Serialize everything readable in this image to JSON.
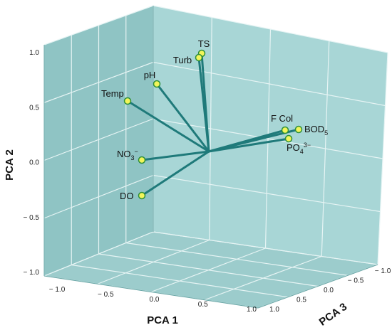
{
  "chart_data": {
    "type": "scatter",
    "subtype": "3d-pca-biplot",
    "title": "",
    "xlabel": "PCA 1",
    "ylabel": "PCA 2",
    "zlabel": "PCA 3",
    "x_ticks": [
      "− 1.0",
      "− 0.5",
      "0.0",
      "0.5",
      "1.0"
    ],
    "y_ticks": [
      "1.0",
      "0.5",
      "0.0",
      "− 0.5",
      "− 1.0"
    ],
    "z_ticks": [
      "1.0",
      "0.5",
      "0.0",
      "− 0.5",
      "− 1.0"
    ],
    "xlim": [
      -1,
      1
    ],
    "ylim": [
      -1,
      1
    ],
    "zlim": [
      -1,
      1
    ],
    "grid": true,
    "colors": {
      "pane_left": "#8fc4c4",
      "pane_back": "#a8d6d6",
      "pane_floor": "#9ccccc",
      "grid": "#e6f4f4",
      "vector": "#1f7a7a",
      "point_fill": "#f2f55a",
      "point_stroke": "#2e8f3a"
    },
    "loadings": [
      {
        "label": "TS",
        "sub": "",
        "sup": ""
      },
      {
        "label": "Turb",
        "sub": "",
        "sup": ""
      },
      {
        "label": "pH",
        "sub": "",
        "sup": ""
      },
      {
        "label": "Temp",
        "sub": "",
        "sup": ""
      },
      {
        "label": "NO",
        "sub": "3",
        "sup": "−"
      },
      {
        "label": "DO",
        "sub": "",
        "sup": ""
      },
      {
        "label": "F Col",
        "sub": "",
        "sup": ""
      },
      {
        "label": "BOD",
        "sub": "5",
        "sup": ""
      },
      {
        "label": "PO",
        "sub": "4",
        "sup": "3−"
      }
    ]
  }
}
